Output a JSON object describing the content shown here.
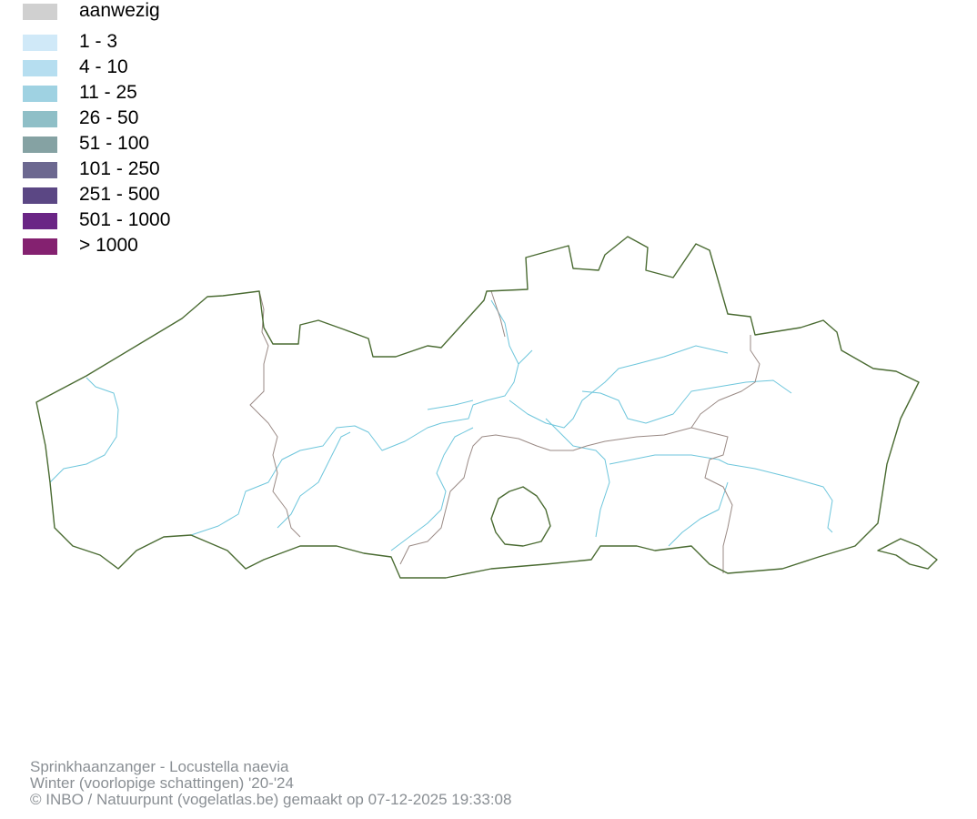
{
  "legend": {
    "items": [
      {
        "label": "aanwezig",
        "color": "#d0d0d0"
      },
      {
        "label": "1 - 3",
        "color": "#d0e9f8"
      },
      {
        "label": "4 - 10",
        "color": "#b6def0"
      },
      {
        "label": "11 - 25",
        "color": "#9fd2e2"
      },
      {
        "label": "26 - 50",
        "color": "#8fbfc7"
      },
      {
        "label": "51 - 100",
        "color": "#85a2a3"
      },
      {
        "label": "101 - 250",
        "color": "#6c6890"
      },
      {
        "label": "251 - 500",
        "color": "#5b4784"
      },
      {
        "label": "501 - 1000",
        "color": "#6a2585"
      },
      {
        "label": "> 1000",
        "color": "#842170"
      }
    ]
  },
  "map": {
    "boundary_color": "#4a6b32",
    "province_color": "#9a8a85",
    "river_color": "#6ec6dc"
  },
  "footer": {
    "line1": "Sprinkhaanzanger - Locustella naevia",
    "line2": "Winter (voorlopige schattingen) '20-'24",
    "line3": "© INBO / Natuurpunt (vogelatlas.be) gemaakt op 07-12-2025 19:33:08"
  }
}
